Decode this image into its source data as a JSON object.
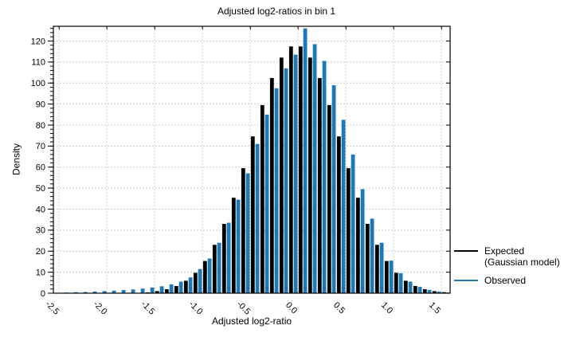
{
  "title": "Adjusted log2-ratios in bin 1",
  "axes": {
    "x_label": "Adjusted log2-ratio",
    "y_label": "Density"
  },
  "legend": {
    "expected_line1": "Expected",
    "expected_line2": "(Gaussian model)",
    "observed": "Observed"
  },
  "colors": {
    "expected": "#000000",
    "observed": "#1f78b4",
    "grid": "#cccccc",
    "axis": "#000000",
    "background": "#ffffff"
  },
  "chart_data": {
    "type": "bar",
    "subtype": "paired-histogram",
    "title": "Adjusted log2-ratios in bin 1",
    "xlabel": "Adjusted log2-ratio",
    "ylabel": "Density",
    "xlim": [
      -2.56,
      1.59
    ],
    "ylim": [
      0,
      127
    ],
    "bin_width": 0.1,
    "grid": true,
    "legend_position": "right-outside",
    "x_ticks": [
      -2.5,
      -2.0,
      -1.5,
      -1.0,
      -0.5,
      0.0,
      0.5,
      1.0,
      1.5
    ],
    "x_tick_labels": [
      "-2.5",
      "-2.0",
      "-1.5",
      "-1.0",
      "-0.5",
      "0.0",
      "0.5",
      "1.0",
      "1.5"
    ],
    "y_ticks": [
      0,
      10,
      20,
      30,
      40,
      50,
      60,
      70,
      80,
      90,
      100,
      110,
      120
    ],
    "y_minor_tick_step": 2,
    "categories": [
      -2.45,
      -2.35,
      -2.25,
      -2.15,
      -2.05,
      -1.95,
      -1.85,
      -1.75,
      -1.65,
      -1.55,
      -1.45,
      -1.35,
      -1.25,
      -1.15,
      -1.05,
      -0.95,
      -0.85,
      -0.75,
      -0.65,
      -0.55,
      -0.45,
      -0.35,
      -0.25,
      -0.15,
      -0.05,
      0.05,
      0.15,
      0.25,
      0.35,
      0.45,
      0.55,
      0.65,
      0.75,
      0.85,
      0.95,
      1.05,
      1.15,
      1.25,
      1.35,
      1.45,
      1.55
    ],
    "series": [
      {
        "name": "Expected (Gaussian model)",
        "color": "#000000",
        "values": [
          0,
          0,
          0,
          0,
          0,
          0,
          0.1,
          0.1,
          0.2,
          0.4,
          1.0,
          1.9,
          3.4,
          5.9,
          9.7,
          15.3,
          23.0,
          33.0,
          45.4,
          59.5,
          74.6,
          89.5,
          102.4,
          112.1,
          117.4,
          117.4,
          112.1,
          102.4,
          89.5,
          74.6,
          59.5,
          45.4,
          33.0,
          23.0,
          15.3,
          9.7,
          5.9,
          3.4,
          1.9,
          1.0,
          0.5
        ]
      },
      {
        "name": "Observed",
        "color": "#1f78b4",
        "values": [
          0.3,
          0.5,
          0.6,
          0.8,
          1.0,
          1.2,
          1.5,
          1.8,
          2.2,
          2.7,
          3.3,
          4.2,
          5.5,
          7.5,
          11.5,
          16.5,
          24.0,
          33.5,
          44.5,
          57.0,
          71.0,
          85.0,
          97.5,
          107.0,
          113.5,
          126.0,
          118.5,
          110.5,
          99.0,
          82.5,
          66.0,
          49.5,
          35.5,
          24.0,
          15.5,
          9.5,
          5.5,
          3.0,
          1.6,
          0.8,
          0.3
        ]
      }
    ]
  }
}
